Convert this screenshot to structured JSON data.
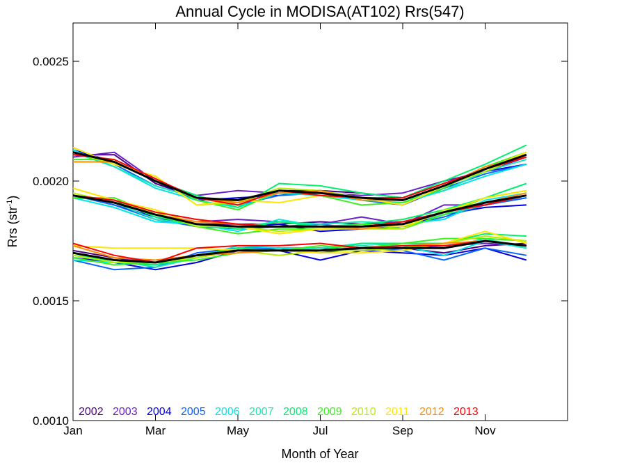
{
  "chart_data": {
    "type": "line",
    "title": "Annual Cycle in MODISA(AT102) Rrs(547)",
    "xlabel": "Month of Year",
    "ylabel_main": "Rrs (str",
    "ylabel_sup": "-1",
    "ylabel_close": ")",
    "x": [
      1,
      2,
      3,
      4,
      5,
      6,
      7,
      8,
      9,
      10,
      11,
      12
    ],
    "xlim": [
      1,
      13
    ],
    "ylim": [
      0.001,
      0.00266
    ],
    "xticks": [
      {
        "x": 1,
        "label": "Jan"
      },
      {
        "x": 3,
        "label": "Mar"
      },
      {
        "x": 5,
        "label": "May"
      },
      {
        "x": 7,
        "label": "Jul"
      },
      {
        "x": 9,
        "label": "Sep"
      },
      {
        "x": 11,
        "label": "Nov"
      }
    ],
    "yticks": [
      {
        "y": 0.001,
        "label": "0.0010"
      },
      {
        "y": 0.0015,
        "label": "0.0015"
      },
      {
        "y": 0.002,
        "label": "0.0020"
      },
      {
        "y": 0.0025,
        "label": "0.0025"
      }
    ],
    "legend_placement": "bottom-left",
    "colors": {
      "2002": "#4b0082",
      "2003": "#6a1fc8",
      "2004": "#0000e0",
      "2005": "#0a64ff",
      "2006": "#00e6e6",
      "2007": "#1ee6b4",
      "2008": "#00f06e",
      "2009": "#3cf01e",
      "2010": "#b4f000",
      "2011": "#ffe600",
      "2012": "#ff8c00",
      "2013": "#ff0000",
      "mean": "#000000"
    },
    "groups": [
      {
        "series": [
          {
            "name": "2002",
            "values": [
              0.00211,
              0.00211,
              0.00199,
              0.00193,
              0.00192,
              0.00196,
              0.00196,
              0.00195,
              0.00193,
              0.00199,
              0.00205,
              0.00211
            ]
          },
          {
            "name": "2003",
            "values": [
              0.0021,
              0.00212,
              0.002,
              0.00194,
              0.00196,
              0.00195,
              0.00195,
              0.00194,
              0.00195,
              0.002,
              0.00204,
              0.0021
            ]
          },
          {
            "name": "2004",
            "values": [
              0.00213,
              0.00208,
              0.002,
              0.00192,
              0.00193,
              0.00194,
              0.00196,
              0.00193,
              0.00192,
              0.00198,
              0.00204,
              0.00207
            ]
          },
          {
            "name": "2005",
            "values": [
              0.00214,
              0.00207,
              0.00198,
              0.00193,
              0.0019,
              0.00194,
              0.00195,
              0.00192,
              0.0019,
              0.00197,
              0.00203,
              0.00207
            ]
          },
          {
            "name": "2006",
            "values": [
              0.00213,
              0.00206,
              0.00197,
              0.00192,
              0.00189,
              0.00195,
              0.00194,
              0.00192,
              0.00191,
              0.00196,
              0.00202,
              0.00207
            ]
          },
          {
            "name": "2007",
            "values": [
              0.00212,
              0.00206,
              0.00198,
              0.00193,
              0.0019,
              0.00196,
              0.00195,
              0.00193,
              0.00192,
              0.00196,
              0.00204,
              0.00209
            ]
          },
          {
            "name": "2008",
            "values": [
              0.00208,
              0.00208,
              0.002,
              0.00194,
              0.00189,
              0.00199,
              0.00198,
              0.00195,
              0.00193,
              0.002,
              0.00207,
              0.00215
            ]
          },
          {
            "name": "2009",
            "values": [
              0.00209,
              0.00209,
              0.00201,
              0.00192,
              0.00188,
              0.00196,
              0.00194,
              0.0019,
              0.00191,
              0.00197,
              0.00206,
              0.00212
            ]
          },
          {
            "name": "2010",
            "values": [
              0.00212,
              0.00207,
              0.00202,
              0.0019,
              0.00191,
              0.00197,
              0.00196,
              0.00193,
              0.00192,
              0.00198,
              0.00204,
              0.00211
            ]
          },
          {
            "name": "2011",
            "values": [
              0.00214,
              0.00207,
              0.00202,
              0.0019,
              0.00192,
              0.00191,
              0.00194,
              0.00193,
              0.0019,
              0.00198,
              0.00205,
              0.00212
            ]
          },
          {
            "name": "2012",
            "values": [
              0.00208,
              0.00208,
              0.002,
              0.00193,
              0.00191,
              0.00195,
              0.00196,
              0.00192,
              0.00192,
              0.00198,
              0.00206,
              0.0021
            ]
          },
          {
            "name": "2013",
            "values": [
              0.00211,
              0.00209,
              0.00201,
              0.00193,
              0.0019,
              0.00196,
              0.00194,
              0.00193,
              0.00193,
              0.00199,
              0.00205,
              0.0021
            ]
          }
        ],
        "mean": [
          0.00212,
          0.00208,
          0.002,
          0.00193,
          0.00192,
          0.00196,
          0.00195,
          0.00193,
          0.00192,
          0.00198,
          0.00205,
          0.00211
        ]
      },
      {
        "series": [
          {
            "name": "2002",
            "values": [
              0.00194,
              0.00192,
              0.00186,
              0.00182,
              0.00182,
              0.00182,
              0.00183,
              0.00182,
              0.00183,
              0.00187,
              0.0019,
              0.00194
            ]
          },
          {
            "name": "2003",
            "values": [
              0.00194,
              0.00191,
              0.00186,
              0.00183,
              0.00184,
              0.00183,
              0.00182,
              0.00185,
              0.00182,
              0.0019,
              0.0019,
              0.00193
            ]
          },
          {
            "name": "2004",
            "values": [
              0.00194,
              0.0019,
              0.00185,
              0.00181,
              0.00181,
              0.00182,
              0.00179,
              0.0018,
              0.00181,
              0.00186,
              0.00189,
              0.0019
            ]
          },
          {
            "name": "2005",
            "values": [
              0.00194,
              0.0019,
              0.00184,
              0.00181,
              0.0018,
              0.00181,
              0.00182,
              0.0018,
              0.00181,
              0.00185,
              0.0019,
              0.00193
            ]
          },
          {
            "name": "2006",
            "values": [
              0.00193,
              0.00189,
              0.00183,
              0.00182,
              0.00179,
              0.00184,
              0.00181,
              0.0018,
              0.00182,
              0.00184,
              0.00192,
              0.00195
            ]
          },
          {
            "name": "2007",
            "values": [
              0.00194,
              0.00191,
              0.00184,
              0.00182,
              0.00181,
              0.00183,
              0.00182,
              0.00183,
              0.00182,
              0.00186,
              0.0019,
              0.00194
            ]
          },
          {
            "name": "2008",
            "values": [
              0.00193,
              0.00192,
              0.00185,
              0.00182,
              0.0018,
              0.00183,
              0.00181,
              0.00182,
              0.00184,
              0.00188,
              0.00193,
              0.00199
            ]
          },
          {
            "name": "2009",
            "values": [
              0.00193,
              0.00193,
              0.00186,
              0.00181,
              0.00178,
              0.0018,
              0.0018,
              0.00182,
              0.0018,
              0.00186,
              0.00193,
              0.00196
            ]
          },
          {
            "name": "2010",
            "values": [
              0.00195,
              0.00191,
              0.00187,
              0.00181,
              0.00181,
              0.00179,
              0.0018,
              0.0018,
              0.0018,
              0.00188,
              0.00191,
              0.00194
            ]
          },
          {
            "name": "2011",
            "values": [
              0.00197,
              0.00192,
              0.00188,
              0.00182,
              0.00181,
              0.00178,
              0.0018,
              0.00181,
              0.00181,
              0.00187,
              0.00193,
              0.00196
            ]
          },
          {
            "name": "2012",
            "values": [
              0.00194,
              0.00191,
              0.00186,
              0.00183,
              0.00182,
              0.00181,
              0.00181,
              0.0018,
              0.00182,
              0.00187,
              0.00191,
              0.00195
            ]
          },
          {
            "name": "2013",
            "values": [
              0.00194,
              0.00192,
              0.00187,
              0.00184,
              0.00182,
              0.00181,
              0.00181,
              0.00181,
              0.00183,
              0.00187,
              0.0019,
              0.00194
            ]
          }
        ],
        "mean": [
          0.00194,
          0.00191,
          0.00186,
          0.00182,
          0.00181,
          0.00181,
          0.00181,
          0.00181,
          0.00182,
          0.00187,
          0.00191,
          0.00194
        ]
      },
      {
        "series": [
          {
            "name": "2002",
            "values": [
              0.00171,
              0.00168,
              0.00166,
              0.00169,
              0.00172,
              0.00171,
              0.00172,
              0.00171,
              0.00172,
              0.0017,
              0.00173,
              0.00174
            ]
          },
          {
            "name": "2003",
            "values": [
              0.0017,
              0.00167,
              0.00167,
              0.00168,
              0.00171,
              0.00172,
              0.00172,
              0.00173,
              0.00172,
              0.00173,
              0.00174,
              0.00173
            ]
          },
          {
            "name": "2004",
            "values": [
              0.00168,
              0.00166,
              0.00163,
              0.00166,
              0.00171,
              0.00171,
              0.00167,
              0.00171,
              0.0017,
              0.00169,
              0.00172,
              0.00167
            ]
          },
          {
            "name": "2005",
            "values": [
              0.00167,
              0.00163,
              0.00164,
              0.0017,
              0.00172,
              0.00172,
              0.0017,
              0.00172,
              0.00171,
              0.00167,
              0.00172,
              0.00169
            ]
          },
          {
            "name": "2006",
            "values": [
              0.00167,
              0.00166,
              0.00165,
              0.00168,
              0.00173,
              0.00172,
              0.00172,
              0.00174,
              0.00173,
              0.00169,
              0.00175,
              0.00172
            ]
          },
          {
            "name": "2007",
            "values": [
              0.00169,
              0.00167,
              0.00164,
              0.00168,
              0.00171,
              0.00171,
              0.00172,
              0.00173,
              0.00172,
              0.00172,
              0.00176,
              0.00172
            ]
          },
          {
            "name": "2008",
            "values": [
              0.0017,
              0.00166,
              0.00165,
              0.00169,
              0.00172,
              0.00171,
              0.00171,
              0.00174,
              0.00174,
              0.00174,
              0.00178,
              0.00177
            ]
          },
          {
            "name": "2009",
            "values": [
              0.00168,
              0.00165,
              0.00166,
              0.00167,
              0.0017,
              0.00171,
              0.00173,
              0.00172,
              0.00174,
              0.00176,
              0.00176,
              0.00175
            ]
          },
          {
            "name": "2010",
            "values": [
              0.00169,
              0.00166,
              0.00166,
              0.00168,
              0.00171,
              0.00169,
              0.00171,
              0.00171,
              0.00172,
              0.00174,
              0.00177,
              0.00175
            ]
          },
          {
            "name": "2011",
            "values": [
              0.00173,
              0.00172,
              0.00172,
              0.00172,
              0.00171,
              0.00171,
              0.0017,
              0.0017,
              0.00171,
              0.00174,
              0.00179,
              0.00174
            ]
          },
          {
            "name": "2012",
            "values": [
              0.00173,
              0.00168,
              0.00167,
              0.00169,
              0.0017,
              0.00171,
              0.00171,
              0.00172,
              0.00173,
              0.00174,
              0.00175,
              0.00173
            ]
          },
          {
            "name": "2013",
            "values": [
              0.00174,
              0.00169,
              0.00166,
              0.00172,
              0.00173,
              0.00173,
              0.00174,
              0.00172,
              0.00173,
              0.00173,
              0.00175,
              0.00173
            ]
          }
        ],
        "mean": [
          0.0017,
          0.00167,
          0.00166,
          0.00169,
          0.00171,
          0.00171,
          0.00171,
          0.00172,
          0.00172,
          0.00172,
          0.00175,
          0.00173
        ]
      }
    ]
  }
}
